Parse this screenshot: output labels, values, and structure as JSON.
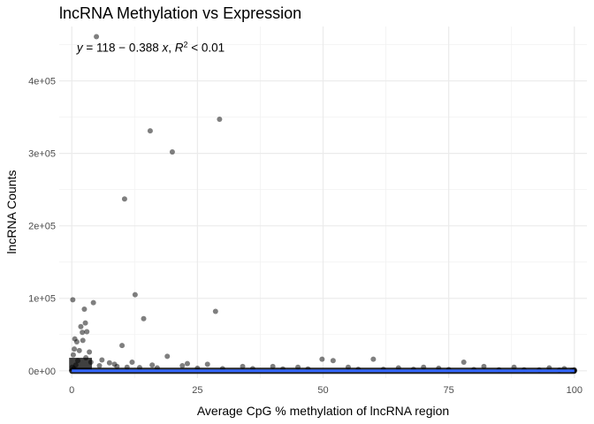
{
  "chart_data": {
    "type": "scatter",
    "title": "lncRNA Methylation vs Expression",
    "xlabel": "Average CpG % methylation of lncRNA region",
    "ylabel": "lncRNA Counts",
    "xlim": [
      -2.5,
      102.5
    ],
    "ylim": [
      -10000,
      475000
    ],
    "x_ticks": [
      0,
      25,
      50,
      75,
      100
    ],
    "x_tick_labels": [
      "0",
      "25",
      "50",
      "75",
      "100"
    ],
    "y_ticks": [
      0,
      100000,
      200000,
      300000,
      400000
    ],
    "y_tick_labels": [
      "0e+00",
      "1e+05",
      "2e+05",
      "3e+05",
      "4e+05"
    ],
    "grid": true,
    "annotation": {
      "text_parts": [
        "y",
        " = 118 − 0.388 ",
        "x",
        ", ",
        "R",
        "2",
        " < 0.01"
      ],
      "x": 1,
      "y": 440000
    },
    "regression": {
      "intercept": 118,
      "slope": -0.388,
      "x_range": [
        0,
        100
      ],
      "color": "#3366ff"
    },
    "point_color": "#000000",
    "point_opacity": 0.5,
    "points": [
      [
        4.9,
        461000
      ],
      [
        29.4,
        347000
      ],
      [
        15.6,
        331000
      ],
      [
        20.0,
        302000
      ],
      [
        10.5,
        237000
      ],
      [
        12.6,
        105000
      ],
      [
        0.2,
        98000
      ],
      [
        4.3,
        94000
      ],
      [
        2.5,
        85000
      ],
      [
        28.6,
        82000
      ],
      [
        14.3,
        72000
      ],
      [
        2.7,
        66000
      ],
      [
        1.8,
        61000
      ],
      [
        3.0,
        54000
      ],
      [
        2.1,
        53000
      ],
      [
        0.6,
        44000
      ],
      [
        2.2,
        42000
      ],
      [
        1.0,
        40000
      ],
      [
        10.0,
        35000
      ],
      [
        0.5,
        30000
      ],
      [
        1.5,
        28000
      ],
      [
        3.5,
        26000
      ],
      [
        19.0,
        20000
      ],
      [
        0.3,
        22000
      ],
      [
        2.8,
        18000
      ],
      [
        49.8,
        16000
      ],
      [
        60.0,
        16000
      ],
      [
        52.0,
        14000
      ],
      [
        12.0,
        12000
      ],
      [
        78.0,
        12000
      ],
      [
        23.0,
        10000
      ],
      [
        27.0,
        9000
      ],
      [
        16.0,
        8000
      ],
      [
        22.0,
        7000
      ],
      [
        34.0,
        6000
      ],
      [
        40.0,
        6000
      ],
      [
        45.0,
        5000
      ],
      [
        55.0,
        5000
      ],
      [
        70.0,
        5000
      ],
      [
        82.0,
        6000
      ],
      [
        88.0,
        5000
      ],
      [
        95.0,
        4000
      ],
      [
        65.0,
        4000
      ],
      [
        73.0,
        3500
      ],
      [
        98.0,
        3000
      ],
      [
        6.0,
        15000
      ],
      [
        7.5,
        11000
      ],
      [
        8.5,
        9000
      ],
      [
        1.2,
        14000
      ],
      [
        3.8,
        12000
      ],
      [
        0.8,
        8000
      ],
      [
        5.5,
        7000
      ],
      [
        9.0,
        6000
      ],
      [
        11.0,
        5000
      ],
      [
        13.5,
        4500
      ],
      [
        17.0,
        4000
      ],
      [
        25.0,
        3500
      ],
      [
        30.0,
        3000
      ],
      [
        36.0,
        3000
      ],
      [
        42.0,
        2500
      ],
      [
        47.0,
        2500
      ],
      [
        57.0,
        2000
      ],
      [
        62.0,
        2000
      ],
      [
        68.0,
        2000
      ],
      [
        75.0,
        1800
      ],
      [
        80.0,
        1800
      ],
      [
        85.0,
        1500
      ],
      [
        90.0,
        1500
      ],
      [
        93.0,
        1200
      ],
      [
        97.0,
        1000
      ],
      [
        100.0,
        1500
      ],
      [
        100.0,
        0
      ],
      [
        99.5,
        500
      ],
      [
        0.1,
        5000
      ],
      [
        0.4,
        3000
      ]
    ]
  }
}
